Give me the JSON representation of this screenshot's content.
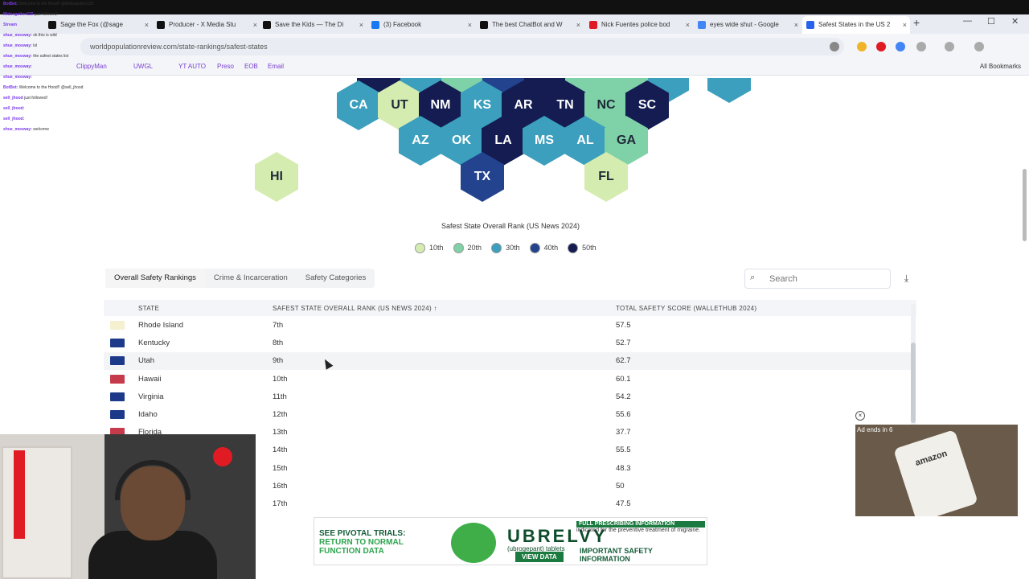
{
  "browser": {
    "tabs": [
      {
        "label": "Sage the Fox (@sage",
        "color": "#111"
      },
      {
        "label": "Producer - X Media Stu",
        "color": "#111"
      },
      {
        "label": "Save the Kids — The Di",
        "color": "#111"
      },
      {
        "label": "(3) Facebook",
        "color": "#1877f2"
      },
      {
        "label": "The best ChatBot and W",
        "color": "#111"
      },
      {
        "label": "Nick Fuentes police bod",
        "color": "#e01b24"
      },
      {
        "label": "eyes wide shut - Google",
        "color": "#4285f4"
      },
      {
        "label": "Safest States in the US 2",
        "color": "#2563eb"
      }
    ],
    "new_tab": "+",
    "url": "worldpopulationreview.com/state-rankings/safest-states",
    "bookmarks": [
      "ClippyMan",
      "UWGL",
      "YT AUTO",
      "Preso",
      "EOB",
      "Email"
    ],
    "all_bookmarks": "All Bookmarks"
  },
  "chat": [
    {
      "user": "BotBot:",
      "msg": "Welcome to the Hood!! @Midsegotten115"
    },
    {
      "user": "Midsegotten115",
      "msg": "just followed!"
    },
    {
      "user": "Stream",
      "msg": ""
    },
    {
      "user": "shue_mosway:",
      "msg": "ok this is wild"
    },
    {
      "user": "shue_mosway:",
      "msg": "lol"
    },
    {
      "user": "shue_mosway:",
      "msg": "the safest states list"
    },
    {
      "user": "shue_mosway:",
      "msg": ""
    },
    {
      "user": "shue_mosway:",
      "msg": ""
    },
    {
      "user": "BotBot:",
      "msg": "Welcome to the Hood!! @sell_jhood"
    },
    {
      "user": "sell_jhood",
      "msg": "just followed!"
    },
    {
      "user": "sell_jhood:",
      "msg": ""
    },
    {
      "user": "sell_jhood:",
      "msg": ""
    },
    {
      "user": "shue_mosway:",
      "msg": "welcome"
    }
  ],
  "map": {
    "hexes": [
      {
        "abbr": "CA",
        "shade": 3
      },
      {
        "abbr": "UT",
        "shade": 1
      },
      {
        "abbr": "NM",
        "shade": 5
      },
      {
        "abbr": "KS",
        "shade": 3
      },
      {
        "abbr": "AR",
        "shade": 5
      },
      {
        "abbr": "TN",
        "shade": 5
      },
      {
        "abbr": "NC",
        "shade": 2
      },
      {
        "abbr": "SC",
        "shade": 5
      },
      {
        "abbr": "AZ",
        "shade": 3
      },
      {
        "abbr": "OK",
        "shade": 3
      },
      {
        "abbr": "LA",
        "shade": 5
      },
      {
        "abbr": "MS",
        "shade": 3
      },
      {
        "abbr": "AL",
        "shade": 3
      },
      {
        "abbr": "GA",
        "shade": 2
      },
      {
        "abbr": "TX",
        "shade": 4
      },
      {
        "abbr": "FL",
        "shade": 1
      },
      {
        "abbr": "HI",
        "shade": 1
      }
    ],
    "title": "Safest State Overall Rank (US News 2024)",
    "legend": [
      {
        "label": "10th",
        "color": "#d5ecb0"
      },
      {
        "label": "20th",
        "color": "#7fd1a8"
      },
      {
        "label": "30th",
        "color": "#3b9fbd"
      },
      {
        "label": "40th",
        "color": "#23438f"
      },
      {
        "label": "50th",
        "color": "#141c52"
      }
    ]
  },
  "tabs": [
    "Overall Safety Rankings",
    "Crime & Incarceration",
    "Safety Categories"
  ],
  "search": {
    "placeholder": "Search"
  },
  "table": {
    "headers": [
      "STATE",
      "SAFEST STATE OVERALL RANK (US NEWS 2024) ↑",
      "TOTAL SAFETY SCORE (WALLETHUB 2024)"
    ],
    "rows": [
      {
        "state": "Rhode Island",
        "rank": "7th",
        "score": "57.5",
        "flag": "#f5f0d0"
      },
      {
        "state": "Kentucky",
        "rank": "8th",
        "score": "52.7",
        "flag": "#1d3a8a"
      },
      {
        "state": "Utah",
        "rank": "9th",
        "score": "62.7",
        "flag": "#1d3a8a"
      },
      {
        "state": "Hawaii",
        "rank": "10th",
        "score": "60.1",
        "flag": "#c53b4b"
      },
      {
        "state": "Virginia",
        "rank": "11th",
        "score": "54.2",
        "flag": "#1d3a8a"
      },
      {
        "state": "Idaho",
        "rank": "12th",
        "score": "55.6",
        "flag": "#1d3a8a"
      },
      {
        "state": "Florida",
        "rank": "13th",
        "score": "37.7",
        "flag": "#c53b4b"
      },
      {
        "state": "",
        "rank": "14th",
        "score": "55.5",
        "flag": ""
      },
      {
        "state": "",
        "rank": "15th",
        "score": "48.3",
        "flag": ""
      },
      {
        "state": "",
        "rank": "16th",
        "score": "50",
        "flag": ""
      },
      {
        "state": "",
        "rank": "17th",
        "score": "47.5",
        "flag": ""
      }
    ]
  },
  "ad_banner": {
    "headline_1": "SEE PIVOTAL TRIALS:",
    "headline_2": "RETURN TO NORMAL",
    "headline_3": "FUNCTION DATA",
    "brand": "UBRELVY",
    "brand_sub": "(ubrogepant) tablets",
    "button": "VIEW DATA",
    "rx_header": "FULL PRESCRIBING INFORMATION",
    "rx_text": "indicated for the preventive treatment of migraine.",
    "safety_1": "IMPORTANT SAFETY",
    "safety_2": "INFORMATION"
  },
  "video_ad": {
    "label": "Ad ends in 6",
    "brand": "amazon"
  },
  "close_icon": "×"
}
